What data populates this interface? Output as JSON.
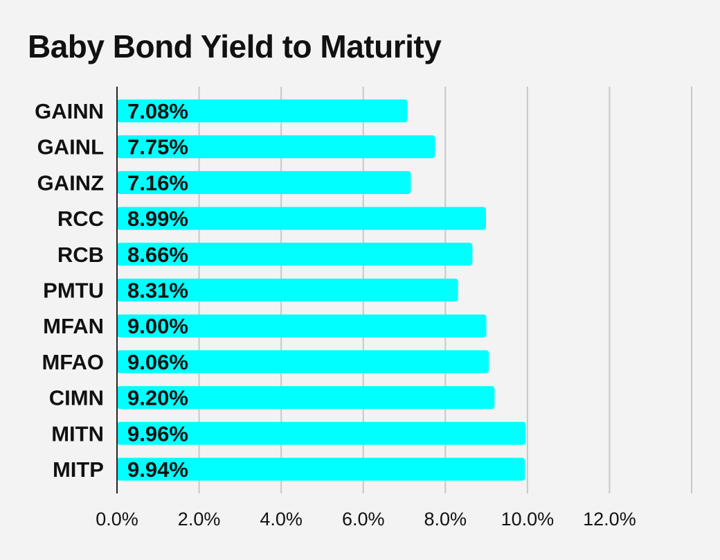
{
  "title": "Baby Bond Yield to Maturity",
  "colors": {
    "bar": "#00ffff",
    "grid": "#c8c8c8",
    "axis": "#222222",
    "background": "#f3f3f3",
    "text": "#111111"
  },
  "chart_data": {
    "type": "bar",
    "orientation": "horizontal",
    "title": "Baby Bond Yield to Maturity",
    "categories": [
      "GAINN",
      "GAINL",
      "GAINZ",
      "RCC",
      "RCB",
      "PMTU",
      "MFAN",
      "MFAO",
      "CIMN",
      "MITN",
      "MITP"
    ],
    "values": [
      7.08,
      7.75,
      7.16,
      8.99,
      8.66,
      8.31,
      9.0,
      9.06,
      9.2,
      9.96,
      9.94
    ],
    "data_labels": [
      "7.08%",
      "7.75%",
      "7.16%",
      "8.99%",
      "8.66%",
      "8.31%",
      "9.00%",
      "9.06%",
      "9.20%",
      "9.96%",
      "9.94%"
    ],
    "xlim": [
      0,
      14
    ],
    "x_ticks": [
      0,
      2,
      4,
      6,
      8,
      10,
      12
    ],
    "x_tick_labels": [
      "0.0%",
      "2.0%",
      "4.0%",
      "6.0%",
      "8.0%",
      "10.0%",
      "12.0%"
    ],
    "grid": true,
    "legend": "none",
    "xlabel": "",
    "ylabel": ""
  }
}
